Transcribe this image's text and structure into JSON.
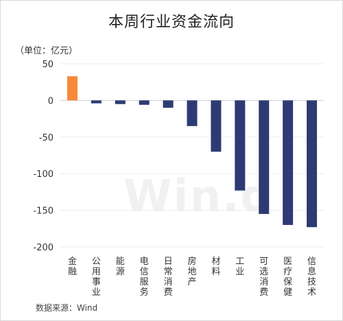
{
  "chart_data": {
    "type": "bar",
    "title": "本周行业资金流向",
    "unit_label": "（单位：亿元）",
    "source": "数据来源：Wind",
    "watermark": "Win.d",
    "categories": [
      "金融",
      "公用事业",
      "能源",
      "电信服务",
      "日常消费",
      "房地产",
      "材料",
      "工业",
      "可选消费",
      "医疗保健",
      "信息技术"
    ],
    "values": [
      33,
      -4,
      -5,
      -6,
      -10,
      -35,
      -70,
      -123,
      -155,
      -170,
      -173
    ],
    "ylim": [
      -200,
      50
    ],
    "yticks": [
      "50",
      "0",
      "-50",
      "-100",
      "-150",
      "-200"
    ],
    "grid": true,
    "colors": {
      "positive": "#f6893a",
      "negative": "#2e3a73"
    }
  }
}
